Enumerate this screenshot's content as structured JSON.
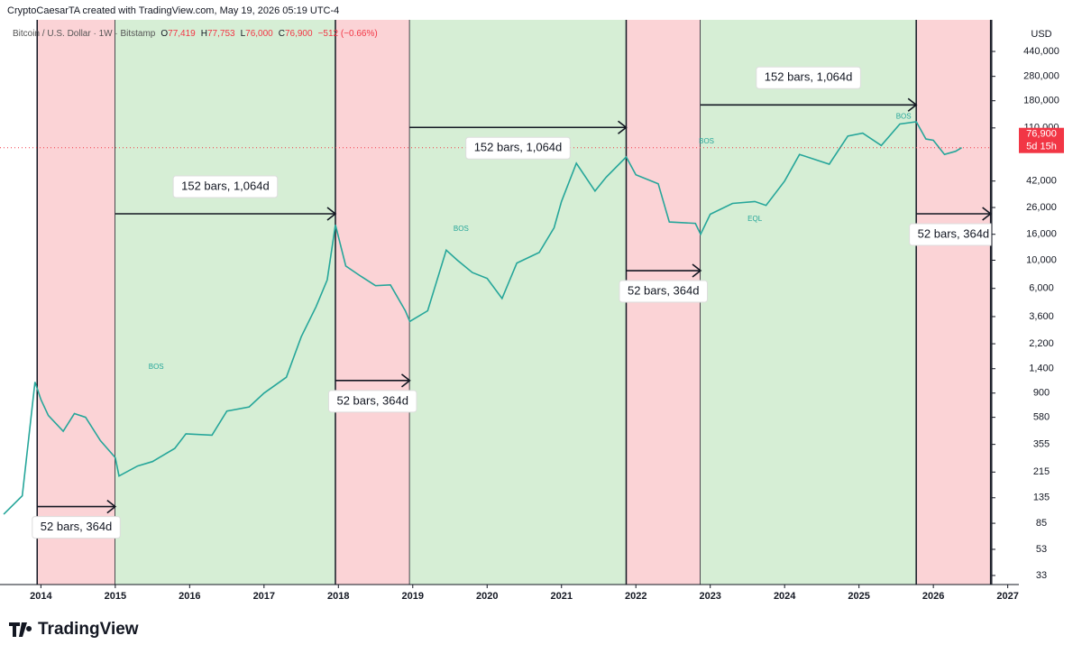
{
  "header": {
    "attribution": "CryptoCaesarTA created with TradingView.com, May 19, 2026 05:19 UTC-4",
    "symbol": "Bitcoin / U.S. Dollar · 1W · Bitstamp",
    "ohlc": [
      {
        "label": "O",
        "value": "77,419"
      },
      {
        "label": "H",
        "value": "77,753"
      },
      {
        "label": "L",
        "value": "76,000"
      },
      {
        "label": "C",
        "value": "76,900"
      }
    ],
    "change": "−512 (−0.66%)"
  },
  "chart_data": {
    "type": "line",
    "log_scale": true,
    "color": "#26a69a",
    "x": [
      2013.5,
      2013.75,
      2013.92,
      2014.0,
      2014.1,
      2014.3,
      2014.45,
      2014.6,
      2014.8,
      2015.0,
      2015.05,
      2015.3,
      2015.5,
      2015.8,
      2015.95,
      2016.3,
      2016.5,
      2016.8,
      2017.0,
      2017.3,
      2017.5,
      2017.7,
      2017.85,
      2017.96,
      2018.1,
      2018.3,
      2018.5,
      2018.7,
      2018.9,
      2018.96,
      2019.2,
      2019.45,
      2019.6,
      2019.8,
      2020.0,
      2020.2,
      2020.4,
      2020.7,
      2020.9,
      2021.0,
      2021.2,
      2021.45,
      2021.6,
      2021.87,
      2022.0,
      2022.3,
      2022.45,
      2022.8,
      2022.87,
      2023.0,
      2023.3,
      2023.6,
      2023.75,
      2024.0,
      2024.2,
      2024.6,
      2024.85,
      2025.05,
      2025.3,
      2025.55,
      2025.77,
      2025.9,
      2026.0,
      2026.15,
      2026.3,
      2026.38
    ],
    "values": [
      100,
      140,
      1100,
      800,
      600,
      450,
      620,
      580,
      380,
      280,
      200,
      240,
      260,
      330,
      430,
      420,
      650,
      700,
      900,
      1200,
      2500,
      4300,
      7000,
      19000,
      9000,
      7500,
      6300,
      6400,
      4000,
      3300,
      4000,
      12000,
      10000,
      8000,
      7200,
      5000,
      9500,
      11500,
      18000,
      29000,
      58000,
      35000,
      45000,
      65000,
      47000,
      40000,
      20000,
      19500,
      16000,
      23000,
      28000,
      29000,
      27000,
      42000,
      68000,
      57000,
      95000,
      100000,
      80000,
      118000,
      123000,
      90000,
      88000,
      68000,
      72000,
      76900
    ],
    "xlim": [
      2013.45,
      2027.15
    ],
    "xticks": [
      2014,
      2015,
      2016,
      2017,
      2018,
      2019,
      2020,
      2021,
      2022,
      2023,
      2024,
      2025,
      2026,
      2027
    ],
    "ylim": [
      28,
      780000
    ],
    "yticks": [
      {
        "value": 440000,
        "label": "440,000"
      },
      {
        "value": 280000,
        "label": "280,000"
      },
      {
        "value": 180000,
        "label": "180,000"
      },
      {
        "value": 110000,
        "label": "110,000"
      },
      {
        "value": 42000,
        "label": "42,000"
      },
      {
        "value": 26000,
        "label": "26,000"
      },
      {
        "value": 16000,
        "label": "16,000"
      },
      {
        "value": 10000,
        "label": "10,000"
      },
      {
        "value": 6000,
        "label": "6,000"
      },
      {
        "value": 3600,
        "label": "3,600"
      },
      {
        "value": 2200,
        "label": "2,200"
      },
      {
        "value": 1400,
        "label": "1,400"
      },
      900,
      580,
      355,
      215,
      135,
      85,
      53,
      33
    ],
    "y_axis_unit": "USD",
    "last_price": 76900,
    "last_price_label": "76,900",
    "countdown": "5d 15h",
    "zones": [
      {
        "start": 2013.95,
        "end": 2015.0,
        "color": "#fbd3d6"
      },
      {
        "start": 2015.0,
        "end": 2017.96,
        "color": "#d6eed5"
      },
      {
        "start": 2017.96,
        "end": 2018.96,
        "color": "#fbd3d6"
      },
      {
        "start": 2018.96,
        "end": 2021.87,
        "color": "#d6eed5"
      },
      {
        "start": 2021.87,
        "end": 2022.87,
        "color": "#fbd3d6"
      },
      {
        "start": 2022.87,
        "end": 2025.77,
        "color": "#d6eed5"
      },
      {
        "start": 2025.77,
        "end": 2026.77,
        "color": "#fbd3d6"
      }
    ],
    "arrows": [
      {
        "start": 2013.95,
        "end": 2015.0,
        "price": 115,
        "label": "52 bars, 364d",
        "label_side": "below"
      },
      {
        "start": 2015.0,
        "end": 2017.96,
        "price": 23200,
        "label": "152 bars, 1,064d",
        "label_side": "above"
      },
      {
        "start": 2017.96,
        "end": 2018.96,
        "price": 1130,
        "label": "52 bars, 364d",
        "label_side": "below"
      },
      {
        "start": 2018.96,
        "end": 2021.87,
        "price": 111000,
        "label": "152 bars, 1,064d",
        "label_side": "below"
      },
      {
        "start": 2021.87,
        "end": 2022.87,
        "price": 8280,
        "label": "52 bars, 364d",
        "label_side": "below"
      },
      {
        "start": 2022.87,
        "end": 2025.77,
        "price": 167000,
        "label": "152 bars, 1,064d",
        "label_side": "above"
      },
      {
        "start": 2025.77,
        "end": 2026.77,
        "price": 23200,
        "label": "52 bars, 364d",
        "label_side": "below"
      }
    ],
    "annotations": [
      {
        "text": "BOS",
        "x": 2015.55,
        "price": 1440
      },
      {
        "text": "BOS",
        "x": 2019.65,
        "price": 17600
      },
      {
        "text": "BOS",
        "x": 2022.95,
        "price": 85700
      },
      {
        "text": "BOS",
        "x": 2025.6,
        "price": 135000
      },
      {
        "text": "EQL",
        "x": 2023.6,
        "price": 21000
      }
    ]
  },
  "footer": {
    "logo": "TradingView"
  }
}
